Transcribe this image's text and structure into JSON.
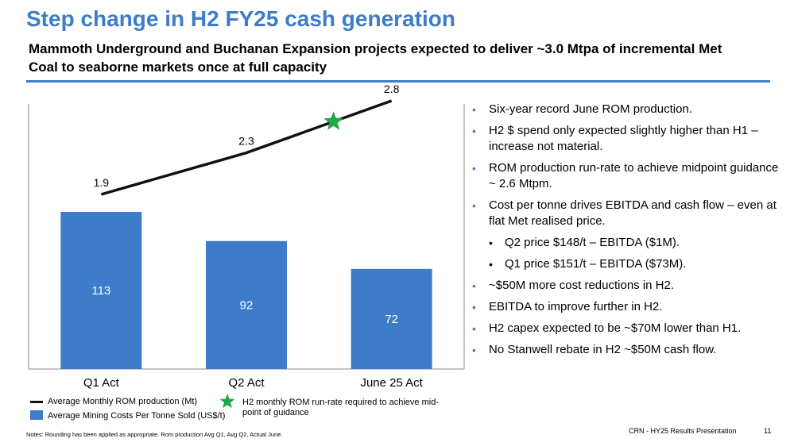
{
  "page": {
    "title": "Step change in H2 FY25 cash generation",
    "subtitle": "Mammoth Underground and Buchanan Expansion projects expected to deliver ~3.0 Mtpa of incremental Met Coal to seaborne markets once at full capacity",
    "notes": "Notes: Rounding has been applied as appropriate. Rom production Avg Q1, Avg Q2, Actual June.",
    "footer": "CRN - HY25 Results Presentation",
    "page_number": "11"
  },
  "colors": {
    "accent": "#3d7cc9",
    "bar": "#3d7cc9",
    "line": "#111111",
    "star": "#1fa84a"
  },
  "chart_data": {
    "type": "bar",
    "categories": [
      "Q1 Act",
      "Q2 Act",
      "June 25 Act"
    ],
    "series": [
      {
        "name": "Average Mining Costs Per Tonne Sold (US$/t)",
        "type": "bar",
        "values": [
          113,
          92,
          72
        ],
        "labels": [
          "113",
          "92",
          "72"
        ]
      },
      {
        "name": "Average Monthly ROM production (Mt)",
        "type": "line",
        "values": [
          1.9,
          2.3,
          2.8
        ],
        "labels": [
          "1.9",
          "2.3",
          "2.8"
        ]
      }
    ],
    "marker": {
      "name": "H2 monthly ROM run-rate required to achieve mid-point of guidance",
      "x_between": [
        "Q2 Act",
        "June 25 Act"
      ],
      "value": 2.6,
      "icon": "star-icon"
    },
    "legend_placement": "bottom",
    "grid": false
  },
  "bullets": [
    {
      "text": "Six-year record June ROM production.",
      "level": 1
    },
    {
      "text": "H2 $ spend only expected slightly higher than H1 – increase not material.",
      "level": 1
    },
    {
      "text": "ROM production run-rate to achieve midpoint guidance ~ 2.6 Mtpm.",
      "level": 1
    },
    {
      "text": "Cost per tonne drives EBITDA and cash flow – even at flat Met realised price.",
      "level": 1
    },
    {
      "text": "Q2 price $148/t – EBITDA ($1M).",
      "level": 2
    },
    {
      "text": "Q1 price $151/t – EBITDA ($73M).",
      "level": 2
    },
    {
      "text": "~$50M more cost reductions in H2.",
      "level": 1
    },
    {
      "text": "EBITDA to improve further in H2.",
      "level": 1
    },
    {
      "text": "H2 capex expected to be ~$70M lower than H1.",
      "level": 1
    },
    {
      "text": "No Stanwell rebate in H2 ~$50M cash flow.",
      "level": 1
    }
  ],
  "bullet_glyph": "•"
}
